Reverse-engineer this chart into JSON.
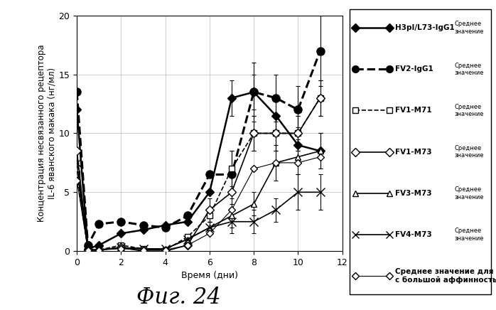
{
  "xlabel": "Время (дни)",
  "ylabel": "Концентрация несвязанного рецептора\nIL-6 яванского макака (нг/мл)",
  "xlim": [
    0,
    12
  ],
  "ylim": [
    0,
    20
  ],
  "xticks": [
    0,
    2,
    4,
    6,
    8,
    10,
    12
  ],
  "yticks": [
    0,
    5,
    10,
    15,
    20
  ],
  "fig_title": "Фиг. 24",
  "fig_title_fontsize": 22,
  "series": [
    {
      "label": "H3pI/L73-IgG1",
      "sublabel": "Среднее\nзначение",
      "x": [
        0,
        0.5,
        1,
        2,
        3,
        4,
        5,
        6,
        7,
        8,
        9,
        10,
        11
      ],
      "y": [
        12.0,
        0.2,
        0.5,
        1.5,
        1.8,
        2.2,
        2.5,
        5.0,
        13.0,
        13.5,
        11.5,
        9.0,
        8.5
      ],
      "yerr": [
        0,
        0,
        0,
        0,
        0,
        0,
        0,
        0,
        1.5,
        1.5,
        1.5,
        1.5,
        1.5
      ],
      "linestyle": "-",
      "marker": "D",
      "markersize": 6,
      "mfc": "#000000",
      "linewidth": 1.8
    },
    {
      "label": "FV2-IgG1",
      "sublabel": "Среднее\nзначение",
      "x": [
        0,
        0.5,
        1,
        2,
        3,
        4,
        5,
        6,
        7,
        8,
        9,
        10,
        11
      ],
      "y": [
        13.5,
        0.5,
        2.3,
        2.5,
        2.2,
        2.0,
        3.0,
        6.5,
        6.5,
        13.5,
        13.0,
        12.0,
        17.0
      ],
      "yerr": [
        0,
        0,
        0,
        0,
        0,
        0,
        0,
        0,
        2.0,
        2.5,
        2.0,
        2.0,
        3.0
      ],
      "linestyle": "--",
      "marker": "o",
      "markersize": 8,
      "mfc": "#000000",
      "linewidth": 2.2
    },
    {
      "label": "FV1-M71",
      "sublabel": "Среднее\nзначение",
      "x": [
        0,
        0.5,
        1,
        2,
        3,
        4,
        5,
        6,
        7,
        8,
        9,
        10,
        11
      ],
      "y": [
        6.5,
        0.1,
        0.1,
        0.5,
        0.2,
        0.1,
        1.2,
        3.0,
        7.0,
        10.0,
        10.0,
        10.0,
        13.0
      ],
      "yerr": [
        0,
        0,
        0,
        0,
        0,
        0,
        0,
        0.5,
        1.5,
        1.5,
        1.5,
        1.5,
        1.5
      ],
      "linestyle": "--",
      "marker": "s",
      "markersize": 6,
      "mfc": "#ffffff",
      "linewidth": 1.2
    },
    {
      "label": "FV1-M73",
      "sublabel": "Среднее\nзначение",
      "x": [
        0,
        0.5,
        1,
        2,
        3,
        4,
        5,
        6,
        7,
        8,
        9,
        10,
        11
      ],
      "y": [
        8.5,
        0.1,
        0.1,
        0.3,
        0.0,
        0.0,
        0.5,
        3.5,
        5.0,
        10.0,
        10.0,
        10.0,
        13.0
      ],
      "yerr": [
        0,
        0,
        0,
        0,
        0,
        0,
        0,
        1.0,
        1.5,
        1.5,
        1.5,
        1.5,
        1.5
      ],
      "linestyle": "-",
      "marker": "D",
      "markersize": 6,
      "mfc": "#ffffff",
      "linewidth": 1.2
    },
    {
      "label": "FV3-M73",
      "sublabel": "Среднее\nзначение",
      "x": [
        0,
        0.5,
        1,
        2,
        3,
        4,
        5,
        6,
        7,
        8,
        9,
        10,
        11
      ],
      "y": [
        7.0,
        0.1,
        0.1,
        0.3,
        0.2,
        0.2,
        1.0,
        2.0,
        3.0,
        4.0,
        7.5,
        8.0,
        8.5
      ],
      "yerr": [
        0,
        0,
        0,
        0,
        0,
        0,
        0,
        0.5,
        1.0,
        1.0,
        1.5,
        1.5,
        1.5
      ],
      "linestyle": "-",
      "marker": "^",
      "markersize": 6,
      "mfc": "#ffffff",
      "linewidth": 1.2
    },
    {
      "label": "FV4-M73",
      "sublabel": "Среднее\nзначение",
      "x": [
        0,
        0.5,
        1,
        2,
        3,
        4,
        5,
        6,
        7,
        8,
        9,
        10,
        11
      ],
      "y": [
        7.5,
        0.1,
        0.1,
        0.3,
        0.2,
        0.2,
        1.0,
        2.0,
        2.5,
        2.5,
        3.5,
        5.0,
        5.0
      ],
      "yerr": [
        0,
        0,
        0,
        0,
        0,
        0,
        0,
        0.5,
        1.0,
        1.0,
        1.0,
        1.5,
        1.5
      ],
      "linestyle": "-",
      "marker": "x",
      "markersize": 8,
      "mfc": "#000000",
      "linewidth": 1.2
    },
    {
      "label": "Среднее значение для Ат\nс большой аффинностью",
      "sublabel": "",
      "x": [
        0,
        0.5,
        1,
        2,
        3,
        4,
        5,
        6,
        7,
        8,
        9,
        10,
        11
      ],
      "y": [
        6.0,
        0.1,
        0.1,
        0.2,
        0.1,
        0.1,
        0.5,
        1.5,
        3.5,
        7.0,
        7.5,
        7.5,
        8.0
      ],
      "yerr": [
        0,
        0,
        0,
        0,
        0,
        0,
        0,
        0,
        0,
        0,
        0,
        0,
        0
      ],
      "linestyle": "-",
      "marker": "D",
      "markersize": 5,
      "mfc": "#ffffff",
      "linewidth": 0.8
    }
  ]
}
